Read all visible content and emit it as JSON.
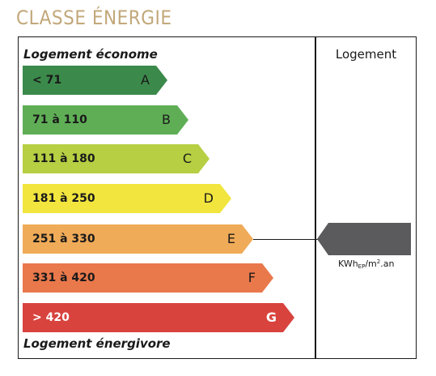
{
  "title": "CLASSE ÉNERGIE",
  "labels": {
    "top": "Logement économe",
    "bottom": "Logement énergivore",
    "column_header": "Logement"
  },
  "classes": [
    {
      "letter": "A",
      "range": "< 71",
      "color": "#3b8a4b"
    },
    {
      "letter": "B",
      "range": "71 à 110",
      "color": "#5fae56"
    },
    {
      "letter": "C",
      "range": "111 à 180",
      "color": "#b6cf43"
    },
    {
      "letter": "D",
      "range": "181 à 250",
      "color": "#f1e53e"
    },
    {
      "letter": "E",
      "range": "251 à 330",
      "color": "#f0ab58"
    },
    {
      "letter": "F",
      "range": "331 à 420",
      "color": "#e9784b"
    },
    {
      "letter": "G",
      "range": "> 420",
      "color": "#d8433e"
    }
  ],
  "indicator": {
    "class": "E",
    "color": "#5b5b5d",
    "value": ""
  },
  "unit": {
    "base": "KWh",
    "sub": "EP",
    "mid": "/m",
    "sup": "2",
    "end": ".an"
  }
}
